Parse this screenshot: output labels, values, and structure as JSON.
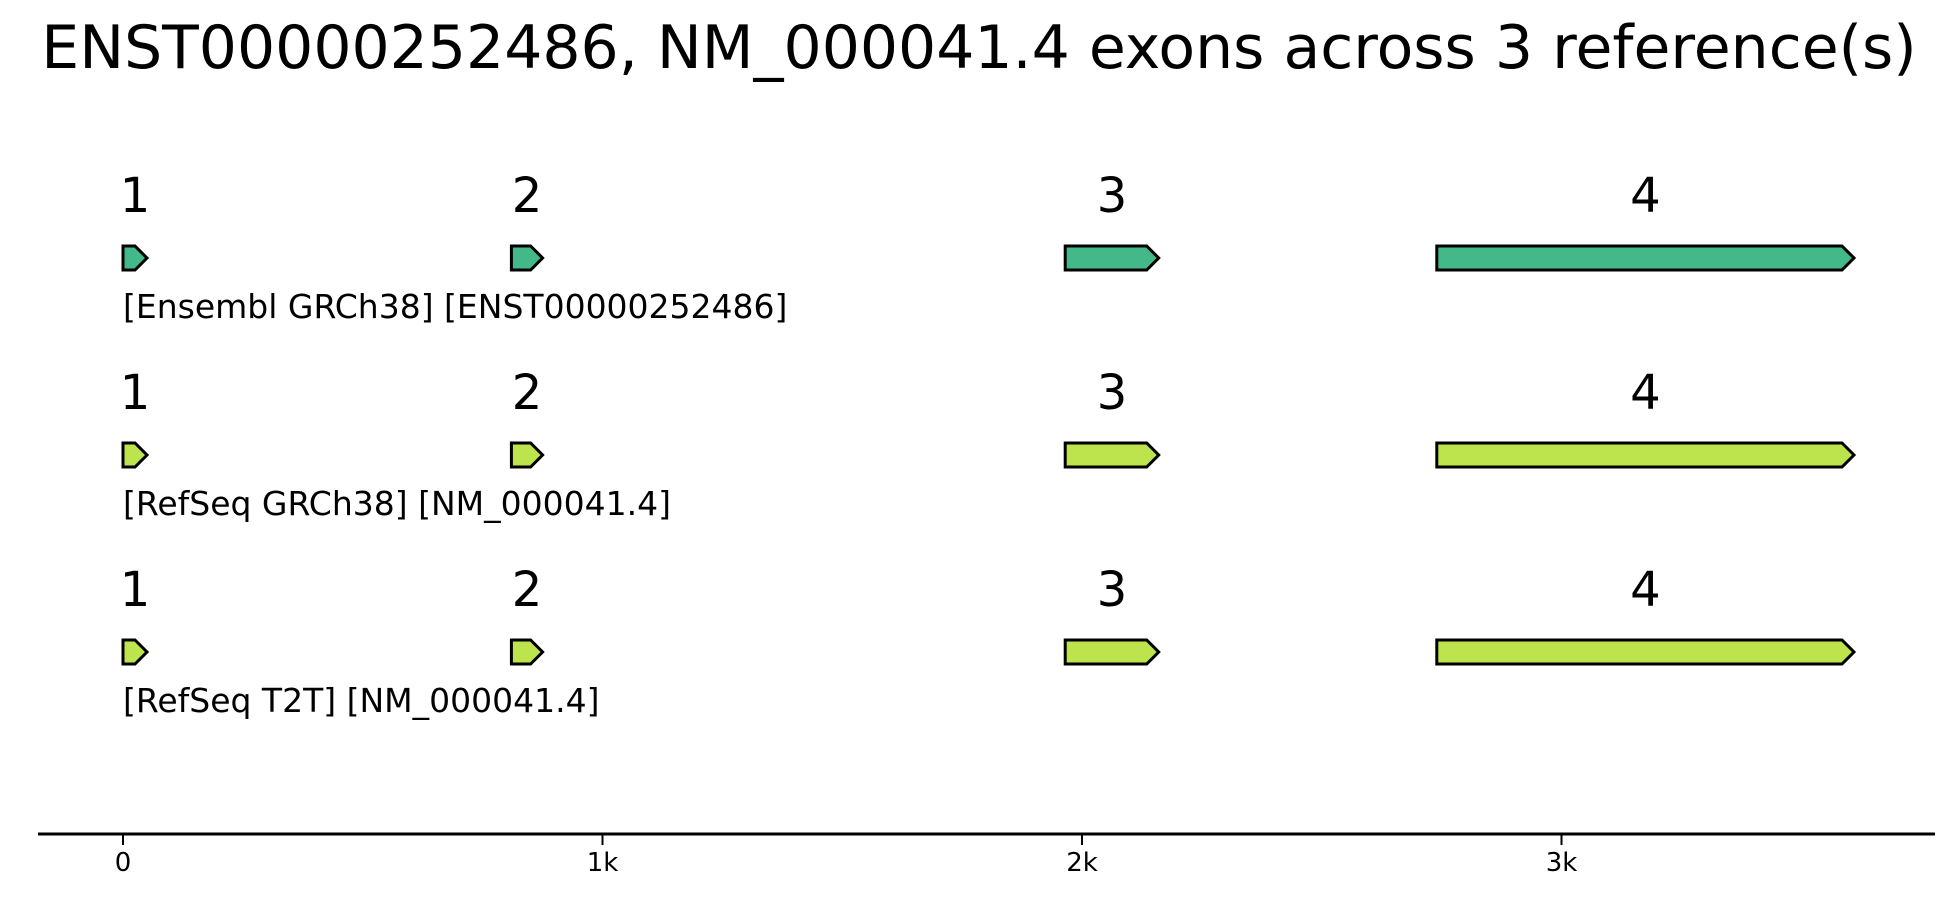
{
  "title": "ENST00000252486, NM_000041.4 exons across 3 reference(s)",
  "axis": {
    "ticks": [
      {
        "value": 0,
        "label": "0"
      },
      {
        "value": 1000,
        "label": "1k"
      },
      {
        "value": 2000,
        "label": "2k"
      },
      {
        "value": 3000,
        "label": "3k"
      }
    ]
  },
  "tracks": [
    {
      "label": "[Ensembl GRCh38] [ENST00000252486]",
      "color": "#43b98a",
      "exons": [
        {
          "number": "1",
          "start": 0,
          "end": 50
        },
        {
          "number": "2",
          "start": 810,
          "end": 875
        },
        {
          "number": "3",
          "start": 1965,
          "end": 2160
        },
        {
          "number": "4",
          "start": 2740,
          "end": 3610
        }
      ]
    },
    {
      "label": "[RefSeq GRCh38] [NM_000041.4]",
      "color": "#bde44c",
      "exons": [
        {
          "number": "1",
          "start": 0,
          "end": 50
        },
        {
          "number": "2",
          "start": 810,
          "end": 875
        },
        {
          "number": "3",
          "start": 1965,
          "end": 2160
        },
        {
          "number": "4",
          "start": 2740,
          "end": 3610
        }
      ]
    },
    {
      "label": "[RefSeq T2T] [NM_000041.4]",
      "color": "#bde44c",
      "exons": [
        {
          "number": "1",
          "start": 0,
          "end": 50
        },
        {
          "number": "2",
          "start": 810,
          "end": 875
        },
        {
          "number": "3",
          "start": 1965,
          "end": 2160
        },
        {
          "number": "4",
          "start": 2740,
          "end": 3610
        }
      ]
    }
  ]
}
